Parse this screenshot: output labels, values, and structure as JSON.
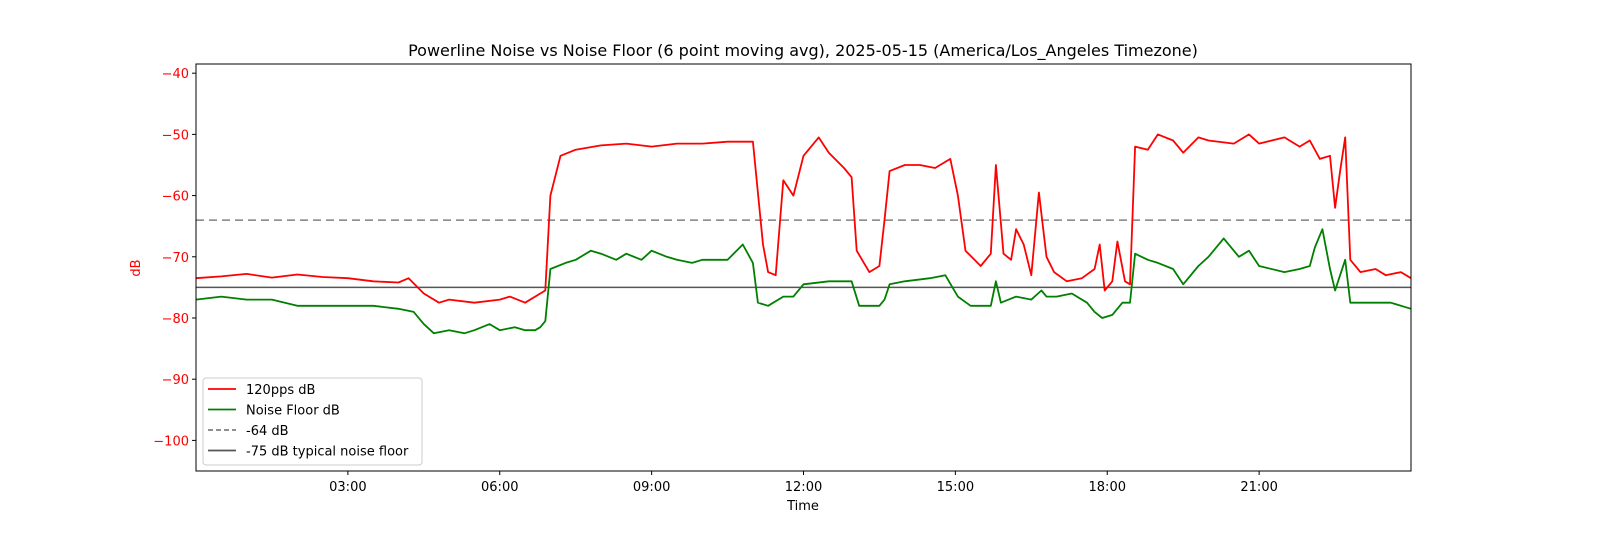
{
  "chart_data": {
    "type": "line",
    "title": "Powerline Noise vs Noise Floor (6 point moving avg), 2025-05-15 (America/Los_Angeles Timezone)",
    "xlabel": "Time",
    "ylabel": "dB",
    "xlim_hours": [
      0.0,
      24.0
    ],
    "ylim": [
      -105,
      -38.5
    ],
    "xticks": [
      {
        "hour": 3,
        "label": "03:00"
      },
      {
        "hour": 6,
        "label": "06:00"
      },
      {
        "hour": 9,
        "label": "09:00"
      },
      {
        "hour": 12,
        "label": "12:00"
      },
      {
        "hour": 15,
        "label": "15:00"
      },
      {
        "hour": 18,
        "label": "18:00"
      },
      {
        "hour": 21,
        "label": "21:00"
      }
    ],
    "yticks": [
      {
        "value": -40,
        "label": "−40"
      },
      {
        "value": -50,
        "label": "−50"
      },
      {
        "value": -60,
        "label": "−60"
      },
      {
        "value": -70,
        "label": "−70"
      },
      {
        "value": -80,
        "label": "−80"
      },
      {
        "value": -90,
        "label": "−90"
      },
      {
        "value": -100,
        "label": "−100"
      }
    ],
    "grid": false,
    "legend_position": "lower-left",
    "colors": {
      "pps": "#ff0000",
      "noise": "#008000",
      "ref64": "#808080",
      "ref75": "#555555",
      "ylabel": "#ff0000"
    },
    "reference_lines": [
      {
        "name": "-64 dB",
        "value": -64,
        "style": "dashed"
      },
      {
        "name": "-75 dB typical noise floor",
        "value": -75,
        "style": "solid"
      }
    ],
    "series": [
      {
        "name": "120pps dB",
        "points": [
          [
            0.0,
            -73.5
          ],
          [
            0.5,
            -73.2
          ],
          [
            1.0,
            -72.8
          ],
          [
            1.5,
            -73.4
          ],
          [
            2.0,
            -72.9
          ],
          [
            2.5,
            -73.3
          ],
          [
            3.0,
            -73.5
          ],
          [
            3.5,
            -74.0
          ],
          [
            4.0,
            -74.2
          ],
          [
            4.2,
            -73.5
          ],
          [
            4.5,
            -76.0
          ],
          [
            4.8,
            -77.5
          ],
          [
            5.0,
            -77.0
          ],
          [
            5.5,
            -77.5
          ],
          [
            6.0,
            -77.0
          ],
          [
            6.2,
            -76.5
          ],
          [
            6.5,
            -77.5
          ],
          [
            6.8,
            -76.0
          ],
          [
            6.9,
            -75.5
          ],
          [
            7.0,
            -60.0
          ],
          [
            7.2,
            -53.5
          ],
          [
            7.5,
            -52.5
          ],
          [
            8.0,
            -51.8
          ],
          [
            8.5,
            -51.5
          ],
          [
            9.0,
            -52.0
          ],
          [
            9.5,
            -51.5
          ],
          [
            10.0,
            -51.5
          ],
          [
            10.5,
            -51.2
          ],
          [
            11.0,
            -51.2
          ],
          [
            11.2,
            -68.0
          ],
          [
            11.3,
            -72.5
          ],
          [
            11.45,
            -73.0
          ],
          [
            11.6,
            -57.5
          ],
          [
            11.8,
            -60.0
          ],
          [
            12.0,
            -53.5
          ],
          [
            12.3,
            -50.5
          ],
          [
            12.5,
            -53.0
          ],
          [
            12.8,
            -55.5
          ],
          [
            12.95,
            -57.0
          ],
          [
            13.05,
            -69.0
          ],
          [
            13.3,
            -72.5
          ],
          [
            13.5,
            -71.5
          ],
          [
            13.6,
            -64.0
          ],
          [
            13.7,
            -56.0
          ],
          [
            14.0,
            -55.0
          ],
          [
            14.3,
            -55.0
          ],
          [
            14.6,
            -55.5
          ],
          [
            14.9,
            -54.0
          ],
          [
            15.05,
            -60.0
          ],
          [
            15.2,
            -69.0
          ],
          [
            15.5,
            -71.5
          ],
          [
            15.7,
            -69.5
          ],
          [
            15.8,
            -55.0
          ],
          [
            15.95,
            -69.5
          ],
          [
            16.1,
            -70.5
          ],
          [
            16.2,
            -65.5
          ],
          [
            16.35,
            -68.0
          ],
          [
            16.5,
            -73.0
          ],
          [
            16.65,
            -59.5
          ],
          [
            16.8,
            -70.0
          ],
          [
            16.95,
            -72.5
          ],
          [
            17.2,
            -74.0
          ],
          [
            17.5,
            -73.5
          ],
          [
            17.75,
            -72.0
          ],
          [
            17.85,
            -68.0
          ],
          [
            17.95,
            -75.5
          ],
          [
            18.1,
            -74.0
          ],
          [
            18.2,
            -67.5
          ],
          [
            18.35,
            -74.0
          ],
          [
            18.45,
            -74.5
          ],
          [
            18.55,
            -52.0
          ],
          [
            18.8,
            -52.5
          ],
          [
            19.0,
            -50.0
          ],
          [
            19.3,
            -51.0
          ],
          [
            19.5,
            -53.0
          ],
          [
            19.8,
            -50.5
          ],
          [
            20.0,
            -51.0
          ],
          [
            20.5,
            -51.5
          ],
          [
            20.8,
            -50.0
          ],
          [
            21.0,
            -51.5
          ],
          [
            21.5,
            -50.5
          ],
          [
            21.8,
            -52.0
          ],
          [
            22.0,
            -51.0
          ],
          [
            22.2,
            -54.0
          ],
          [
            22.4,
            -53.5
          ],
          [
            22.5,
            -62.0
          ],
          [
            22.6,
            -56.0
          ],
          [
            22.7,
            -50.5
          ],
          [
            22.8,
            -70.5
          ],
          [
            23.0,
            -72.5
          ],
          [
            23.3,
            -72.0
          ],
          [
            23.5,
            -73.0
          ],
          [
            23.8,
            -72.5
          ],
          [
            24.0,
            -73.5
          ]
        ]
      },
      {
        "name": "Noise Floor dB",
        "points": [
          [
            0.0,
            -77.0
          ],
          [
            0.5,
            -76.5
          ],
          [
            1.0,
            -77.0
          ],
          [
            1.5,
            -77.0
          ],
          [
            2.0,
            -78.0
          ],
          [
            2.5,
            -78.0
          ],
          [
            3.0,
            -78.0
          ],
          [
            3.5,
            -78.0
          ],
          [
            4.0,
            -78.5
          ],
          [
            4.3,
            -79.0
          ],
          [
            4.5,
            -81.0
          ],
          [
            4.7,
            -82.5
          ],
          [
            5.0,
            -82.0
          ],
          [
            5.3,
            -82.5
          ],
          [
            5.5,
            -82.0
          ],
          [
            5.8,
            -81.0
          ],
          [
            6.0,
            -82.0
          ],
          [
            6.3,
            -81.5
          ],
          [
            6.5,
            -82.0
          ],
          [
            6.7,
            -82.0
          ],
          [
            6.8,
            -81.5
          ],
          [
            6.9,
            -80.5
          ],
          [
            7.0,
            -72.0
          ],
          [
            7.3,
            -71.0
          ],
          [
            7.5,
            -70.5
          ],
          [
            7.8,
            -69.0
          ],
          [
            8.0,
            -69.5
          ],
          [
            8.3,
            -70.5
          ],
          [
            8.5,
            -69.5
          ],
          [
            8.8,
            -70.5
          ],
          [
            9.0,
            -69.0
          ],
          [
            9.3,
            -70.0
          ],
          [
            9.5,
            -70.5
          ],
          [
            9.8,
            -71.0
          ],
          [
            10.0,
            -70.5
          ],
          [
            10.3,
            -70.5
          ],
          [
            10.5,
            -70.5
          ],
          [
            10.8,
            -68.0
          ],
          [
            11.0,
            -71.0
          ],
          [
            11.1,
            -77.5
          ],
          [
            11.3,
            -78.0
          ],
          [
            11.6,
            -76.5
          ],
          [
            11.8,
            -76.5
          ],
          [
            12.0,
            -74.5
          ],
          [
            12.5,
            -74.0
          ],
          [
            12.95,
            -74.0
          ],
          [
            13.1,
            -78.0
          ],
          [
            13.5,
            -78.0
          ],
          [
            13.6,
            -77.0
          ],
          [
            13.7,
            -74.5
          ],
          [
            14.0,
            -74.0
          ],
          [
            14.5,
            -73.5
          ],
          [
            14.8,
            -73.0
          ],
          [
            15.05,
            -76.5
          ],
          [
            15.3,
            -78.0
          ],
          [
            15.7,
            -78.0
          ],
          [
            15.8,
            -74.0
          ],
          [
            15.9,
            -77.5
          ],
          [
            16.2,
            -76.5
          ],
          [
            16.5,
            -77.0
          ],
          [
            16.7,
            -75.5
          ],
          [
            16.8,
            -76.5
          ],
          [
            17.0,
            -76.5
          ],
          [
            17.3,
            -76.0
          ],
          [
            17.6,
            -77.5
          ],
          [
            17.75,
            -79.0
          ],
          [
            17.9,
            -80.0
          ],
          [
            18.1,
            -79.5
          ],
          [
            18.3,
            -77.5
          ],
          [
            18.45,
            -77.5
          ],
          [
            18.55,
            -69.5
          ],
          [
            18.8,
            -70.5
          ],
          [
            19.0,
            -71.0
          ],
          [
            19.3,
            -72.0
          ],
          [
            19.5,
            -74.5
          ],
          [
            19.8,
            -71.5
          ],
          [
            20.0,
            -70.0
          ],
          [
            20.3,
            -67.0
          ],
          [
            20.6,
            -70.0
          ],
          [
            20.8,
            -69.0
          ],
          [
            21.0,
            -71.5
          ],
          [
            21.5,
            -72.5
          ],
          [
            21.8,
            -72.0
          ],
          [
            22.0,
            -71.5
          ],
          [
            22.1,
            -68.5
          ],
          [
            22.25,
            -65.5
          ],
          [
            22.4,
            -72.0
          ],
          [
            22.5,
            -75.5
          ],
          [
            22.6,
            -73.0
          ],
          [
            22.7,
            -70.5
          ],
          [
            22.8,
            -77.5
          ],
          [
            23.0,
            -77.5
          ],
          [
            23.3,
            -77.5
          ],
          [
            23.6,
            -77.5
          ],
          [
            24.0,
            -78.5
          ]
        ]
      }
    ],
    "legend": [
      {
        "label": "120pps dB",
        "style": "solid",
        "color": "#ff0000"
      },
      {
        "label": "Noise Floor dB",
        "style": "solid",
        "color": "#008000"
      },
      {
        "label": "-64 dB",
        "style": "dashed",
        "color": "#808080"
      },
      {
        "label": "-75 dB typical noise floor",
        "style": "solid",
        "color": "#555555"
      }
    ]
  }
}
